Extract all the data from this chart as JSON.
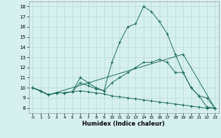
{
  "xlabel": "Humidex (Indice chaleur)",
  "bg_color": "#d6f0ef",
  "grid_color": "#b5d8d5",
  "line_color": "#1a6b5a",
  "xlim": [
    -0.5,
    23.5
  ],
  "ylim": [
    7.5,
    18.5
  ],
  "xticks": [
    0,
    1,
    2,
    3,
    4,
    5,
    6,
    7,
    8,
    9,
    10,
    11,
    12,
    13,
    14,
    15,
    16,
    17,
    18,
    19,
    20,
    21,
    22,
    23
  ],
  "yticks": [
    8,
    9,
    10,
    11,
    12,
    13,
    14,
    15,
    16,
    17,
    18
  ],
  "lines": [
    {
      "x": [
        0,
        1,
        2,
        3,
        4,
        5,
        6,
        7,
        8,
        9,
        10,
        11,
        12,
        13,
        14,
        15,
        16,
        17,
        18,
        19,
        20,
        21,
        22,
        23
      ],
      "y": [
        10,
        9.7,
        9.3,
        9.5,
        9.5,
        9.6,
        11.0,
        10.5,
        10.0,
        9.7,
        12.5,
        14.5,
        16.0,
        16.3,
        18.0,
        17.5,
        16.5,
        15.3,
        13.3,
        11.5,
        10.0,
        9.2,
        8.1,
        8.0
      ]
    },
    {
      "x": [
        0,
        2,
        19,
        23
      ],
      "y": [
        10,
        9.3,
        13.3,
        8.0
      ]
    },
    {
      "x": [
        0,
        1,
        2,
        3,
        4,
        5,
        6,
        7,
        8,
        9,
        10,
        11,
        12,
        13,
        14,
        15,
        16,
        17,
        18,
        19,
        20,
        21,
        22,
        23
      ],
      "y": [
        10,
        9.7,
        9.3,
        9.5,
        9.5,
        9.6,
        10.5,
        10.2,
        9.9,
        9.7,
        10.5,
        11.0,
        11.5,
        12.0,
        12.5,
        12.5,
        12.8,
        12.5,
        11.5,
        11.5,
        10.0,
        9.2,
        9.0,
        8.0
      ]
    },
    {
      "x": [
        0,
        1,
        2,
        3,
        4,
        5,
        6,
        7,
        8,
        9,
        10,
        11,
        12,
        13,
        14,
        15,
        16,
        17,
        18,
        19,
        20,
        21,
        22,
        23
      ],
      "y": [
        10,
        9.7,
        9.3,
        9.5,
        9.5,
        9.6,
        9.7,
        9.6,
        9.5,
        9.4,
        9.2,
        9.1,
        9.0,
        8.9,
        8.8,
        8.7,
        8.6,
        8.5,
        8.4,
        8.3,
        8.2,
        8.1,
        8.0,
        8.0
      ]
    }
  ]
}
